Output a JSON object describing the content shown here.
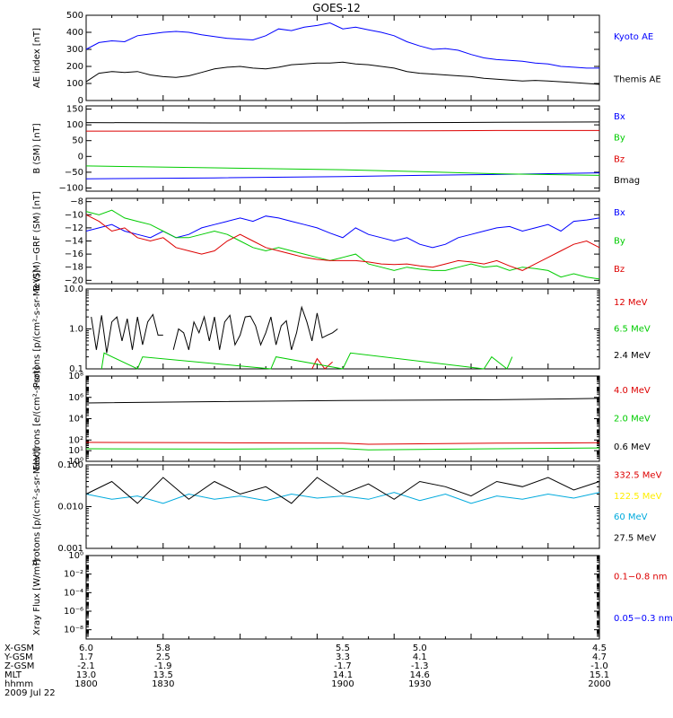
{
  "title": "GOES-12",
  "colors": {
    "black": "#000000",
    "blue": "#0000ff",
    "green": "#00cc00",
    "red": "#dd0000",
    "yellow": "#ffee00",
    "cyan": "#00aadd"
  },
  "x_axis": {
    "min": 1800,
    "max": 2000,
    "rows": [
      {
        "label": "X-GSM",
        "values": [
          "6.0",
          "5.8",
          "5.5",
          "5.0",
          "4.5"
        ]
      },
      {
        "label": "Y-GSM",
        "values": [
          "1.7",
          "2.5",
          "3.3",
          "4.1",
          "4.7"
        ]
      },
      {
        "label": "Z-GSM",
        "values": [
          "-2.1",
          "-1.9",
          "-1.7",
          "-1.3",
          "-1.0"
        ]
      },
      {
        "label": "MLT",
        "values": [
          "13.0",
          "13.5",
          "14.1",
          "14.6",
          "15.1"
        ]
      },
      {
        "label": "hhmm",
        "values": [
          "1800",
          "1830",
          "1900",
          "1930",
          "2000"
        ]
      }
    ],
    "date": "2009 Jul 22"
  },
  "chart_data": [
    {
      "type": "line",
      "id": "ae",
      "ylabel": "AE index [nT]",
      "ylim": [
        0,
        500
      ],
      "yticks": [
        "0",
        "100",
        "200",
        "300",
        "400",
        "500"
      ],
      "ytickvals": [
        0,
        100,
        200,
        300,
        400,
        500
      ],
      "series": [
        {
          "name": "Kyoto AE",
          "color": "blue",
          "x": [
            1800,
            1805,
            1810,
            1815,
            1820,
            1825,
            1830,
            1835,
            1840,
            1845,
            1850,
            1855,
            1860,
            1865,
            1870,
            1875,
            1880,
            1885,
            1890,
            1895,
            1900,
            1905,
            1910,
            1915,
            1920,
            1925,
            1930,
            1935,
            1940,
            1945,
            1950,
            1955,
            1960,
            1965,
            1970,
            1975,
            1980,
            1985,
            1990,
            1995,
            2000
          ],
          "y": [
            300,
            340,
            350,
            345,
            380,
            390,
            400,
            405,
            400,
            385,
            375,
            365,
            360,
            355,
            380,
            420,
            410,
            430,
            440,
            455,
            420,
            430,
            415,
            400,
            380,
            345,
            320,
            300,
            305,
            295,
            270,
            250,
            240,
            235,
            230,
            220,
            215,
            200,
            195,
            190,
            190
          ]
        },
        {
          "name": "Themis AE",
          "color": "black",
          "x": [
            1800,
            1805,
            1810,
            1815,
            1820,
            1825,
            1830,
            1835,
            1840,
            1845,
            1850,
            1855,
            1860,
            1865,
            1870,
            1875,
            1880,
            1885,
            1890,
            1895,
            1900,
            1905,
            1910,
            1915,
            1920,
            1925,
            1930,
            1935,
            1940,
            1945,
            1950,
            1955,
            1960,
            1965,
            1970,
            1975,
            1980,
            1985,
            1990,
            1995,
            2000
          ],
          "y": [
            110,
            160,
            170,
            165,
            170,
            150,
            140,
            135,
            145,
            165,
            185,
            195,
            200,
            190,
            185,
            195,
            210,
            215,
            220,
            220,
            225,
            215,
            210,
            200,
            190,
            170,
            160,
            155,
            150,
            145,
            140,
            130,
            125,
            120,
            115,
            118,
            115,
            110,
            105,
            100,
            95
          ]
        }
      ]
    },
    {
      "type": "line",
      "id": "bsm",
      "ylabel": "B (SM) [nT]",
      "ylim": [
        -110,
        160
      ],
      "yticks": [
        "150",
        "100",
        "50",
        "0",
        "−50",
        "−100"
      ],
      "ytickvals": [
        150,
        100,
        50,
        0,
        -50,
        -100
      ],
      "series": [
        {
          "name": "Bx",
          "color": "blue",
          "x": [
            1800,
            1850,
            1900,
            1930,
            1960,
            2000
          ],
          "y": [
            -71,
            -68,
            -64,
            -60,
            -57,
            -52
          ]
        },
        {
          "name": "By",
          "color": "green",
          "x": [
            1800,
            1850,
            1900,
            1930,
            1960,
            2000
          ],
          "y": [
            -30,
            -36,
            -42,
            -48,
            -55,
            -60
          ]
        },
        {
          "name": "Bz",
          "color": "red",
          "x": [
            1800,
            1850,
            1900,
            1930,
            1960,
            2000
          ],
          "y": [
            80,
            80,
            81,
            81,
            82,
            82
          ]
        },
        {
          "name": "Bmag",
          "color": "black",
          "x": [
            1800,
            1850,
            1900,
            1930,
            1960,
            2000
          ],
          "y": [
            107,
            106,
            106,
            107,
            108,
            109
          ]
        }
      ],
      "gap": [
        1897,
        1900
      ]
    },
    {
      "type": "line",
      "id": "bdiff",
      "ylabel": "B (SM)−GRF (SM) [nT]",
      "ylim": [
        -20.5,
        -7.5
      ],
      "yticks": [
        "−8",
        "−10",
        "−12",
        "−14",
        "−16",
        "−18",
        "−20"
      ],
      "ytickvals": [
        -8,
        -10,
        -12,
        -14,
        -16,
        -18,
        -20
      ],
      "series": [
        {
          "name": "Bx",
          "color": "blue",
          "x": [
            1800,
            1805,
            1810,
            1815,
            1820,
            1825,
            1830,
            1835,
            1840,
            1845,
            1850,
            1855,
            1860,
            1865,
            1870,
            1875,
            1880,
            1885,
            1890,
            1895,
            1900,
            1905,
            1910,
            1915,
            1920,
            1925,
            1930,
            1935,
            1940,
            1945,
            1950,
            1955,
            1960,
            1965,
            1970,
            1975,
            1980,
            1985,
            1990,
            1995,
            2000
          ],
          "y": [
            -12.5,
            -12,
            -11.5,
            -12.5,
            -13,
            -13.5,
            -12.5,
            -13.5,
            -13,
            -12,
            -11.5,
            -11,
            -10.5,
            -11,
            -10.2,
            -10.5,
            -11,
            -11.5,
            -12,
            -12.8,
            -13.5,
            -12,
            -13,
            -13.5,
            -14,
            -13.5,
            -14.5,
            -15,
            -14.5,
            -13.5,
            -13,
            -12.5,
            -12,
            -11.8,
            -12.5,
            -12,
            -11.5,
            -12.5,
            -11,
            -10.8,
            -10.5
          ]
        },
        {
          "name": "By",
          "color": "green",
          "x": [
            1800,
            1805,
            1810,
            1815,
            1820,
            1825,
            1830,
            1835,
            1840,
            1845,
            1850,
            1855,
            1860,
            1865,
            1870,
            1875,
            1880,
            1885,
            1890,
            1895,
            1900,
            1905,
            1910,
            1915,
            1920,
            1925,
            1930,
            1935,
            1940,
            1945,
            1950,
            1955,
            1960,
            1965,
            1970,
            1975,
            1980,
            1985,
            1990,
            1995,
            2000
          ],
          "y": [
            -9.5,
            -10,
            -9.3,
            -10.5,
            -11,
            -11.5,
            -12.5,
            -13.5,
            -13.5,
            -13,
            -12.5,
            -13,
            -14,
            -15,
            -15.5,
            -15,
            -15.5,
            -16,
            -16.5,
            -17,
            -16.5,
            -16,
            -17.5,
            -18,
            -18.5,
            -18,
            -18.3,
            -18.5,
            -18.5,
            -18,
            -17.5,
            -18,
            -17.8,
            -18.5,
            -18,
            -18.2,
            -18.5,
            -19.5,
            -19,
            -19.5,
            -19.8
          ]
        },
        {
          "name": "Bz",
          "color": "red",
          "x": [
            1800,
            1805,
            1810,
            1815,
            1820,
            1825,
            1830,
            1835,
            1840,
            1845,
            1850,
            1855,
            1860,
            1865,
            1870,
            1875,
            1880,
            1885,
            1890,
            1895,
            1900,
            1905,
            1910,
            1915,
            1920,
            1925,
            1930,
            1935,
            1940,
            1945,
            1950,
            1955,
            1960,
            1965,
            1970,
            1975,
            1980,
            1985,
            1990,
            1995,
            2000
          ],
          "y": [
            -10,
            -11,
            -12.5,
            -12,
            -13.5,
            -14,
            -13.5,
            -15,
            -15.5,
            -16,
            -15.5,
            -14,
            -13,
            -14,
            -15,
            -15.5,
            -16,
            -16.5,
            -16.8,
            -17,
            -17,
            -17,
            -17.2,
            -17.5,
            -17.6,
            -17.5,
            -17.8,
            -18,
            -17.5,
            -17,
            -17.2,
            -17.5,
            -17,
            -17.8,
            -18.5,
            -17.5,
            -16.5,
            -15.5,
            -14.5,
            -14,
            -15
          ]
        }
      ],
      "gap": [
        1897,
        1900
      ]
    },
    {
      "type": "line",
      "id": "protons1",
      "log": true,
      "ylabel": "Protons [p/(cm²-s-sr-MeV)]",
      "ylim": [
        0.1,
        10
      ],
      "yticks": [
        "10.0",
        "1.0",
        "0.1"
      ],
      "ytickvals": [
        10,
        1,
        0.1
      ],
      "series": [
        {
          "name": "12 MeV",
          "color": "red",
          "x": [
            1888,
            1890,
            1893,
            1896
          ],
          "y": [
            0.1,
            0.18,
            0.1,
            0.15
          ]
        },
        {
          "name": "6.5 MeV",
          "color": "green",
          "x": [
            1806,
            1807,
            1820,
            1822,
            1872,
            1874,
            1900,
            1903,
            1955,
            1958,
            1964,
            1966
          ],
          "y": [
            0.1,
            0.25,
            0.1,
            0.2,
            0.1,
            0.2,
            0.1,
            0.25,
            0.1,
            0.2,
            0.1,
            0.2
          ]
        },
        {
          "name": "2.4 MeV",
          "color": "black",
          "x": [
            1802,
            1804,
            1806,
            1808,
            1810,
            1812,
            1814,
            1816,
            1818,
            1820,
            1822,
            1824,
            1826,
            1828,
            1830,
            1832,
            1834,
            1836,
            1838,
            1840,
            1842,
            1844,
            1846,
            1848,
            1850,
            1852,
            1854,
            1856,
            1858,
            1860,
            1862,
            1864,
            1866,
            1868,
            1870,
            1872,
            1874,
            1876,
            1878,
            1880,
            1882,
            1884,
            1886,
            1888,
            1890,
            1892,
            1894,
            1896,
            1898
          ],
          "y": [
            2,
            0.3,
            2.2,
            0.25,
            1.5,
            2,
            0.5,
            1.8,
            0.3,
            2,
            0.4,
            1.5,
            2.3,
            0.7,
            0.7,
            null,
            0.3,
            1,
            0.8,
            0.3,
            1.5,
            0.8,
            2,
            0.5,
            2,
            0.3,
            1.5,
            2.2,
            0.4,
            0.7,
            2,
            2.1,
            1.2,
            0.4,
            0.8,
            2,
            0.4,
            1.2,
            1.6,
            0.3,
            0.8,
            3.5,
            1.5,
            0.5,
            2.5,
            0.6,
            0.7,
            0.8,
            1
          ]
        }
      ]
    },
    {
      "type": "line",
      "id": "electrons",
      "log": true,
      "ylabel": "Electrons [e/(cm²-s-sr)]",
      "ylim": [
        1,
        100000000.0
      ],
      "yticks": [
        "10⁸",
        "10⁶",
        "10⁴",
        "10²",
        "10¹",
        "10⁰"
      ],
      "ytickvals": [
        100000000.0,
        1000000.0,
        10000.0,
        100,
        10,
        1
      ],
      "series": [
        {
          "name": "4.0 MeV",
          "color": "red",
          "x": [
            1800,
            1850,
            1900,
            1910,
            1960,
            2000
          ],
          "y": [
            60,
            55,
            50,
            40,
            50,
            55
          ]
        },
        {
          "name": "2.0 MeV",
          "color": "green",
          "x": [
            1800,
            1850,
            1900,
            1910,
            1960,
            2000
          ],
          "y": [
            15,
            14,
            16,
            12,
            15,
            18
          ]
        },
        {
          "name": "0.6 MeV",
          "color": "black",
          "x": [
            1800,
            1850,
            1900,
            1960,
            2000
          ],
          "y": [
            300000.0,
            400000.0,
            500000.0,
            600000.0,
            800000.0
          ]
        }
      ]
    },
    {
      "type": "line",
      "id": "protons2",
      "log": true,
      "ylabel": "Protons [p/(cm²-s-sr-MeV)]",
      "ylim": [
        0.001,
        0.1
      ],
      "yticks": [
        "0.100",
        "0.010",
        "0.001"
      ],
      "ytickvals": [
        0.1,
        0.01,
        0.001
      ],
      "series": [
        {
          "name": "332.5 MeV",
          "color": "red",
          "x": [],
          "y": []
        },
        {
          "name": "122.5 MeV",
          "color": "yellow",
          "x": [],
          "y": []
        },
        {
          "name": "60 MeV",
          "color": "cyan",
          "x": [
            1800,
            1810,
            1820,
            1830,
            1840,
            1850,
            1860,
            1870,
            1880,
            1890,
            1900,
            1910,
            1920,
            1930,
            1940,
            1950,
            1960,
            1970,
            1980,
            1990,
            2000
          ],
          "y": [
            0.02,
            0.015,
            0.018,
            0.012,
            0.02,
            0.015,
            0.018,
            0.014,
            0.02,
            0.016,
            0.018,
            0.015,
            0.022,
            0.014,
            0.02,
            0.012,
            0.018,
            0.015,
            0.02,
            0.016,
            0.022
          ]
        },
        {
          "name": "27.5 MeV",
          "color": "black",
          "x": [
            1800,
            1810,
            1820,
            1830,
            1840,
            1850,
            1860,
            1870,
            1880,
            1890,
            1900,
            1910,
            1920,
            1930,
            1940,
            1950,
            1960,
            1970,
            1980,
            1990,
            2000
          ],
          "y": [
            0.02,
            0.04,
            0.012,
            0.05,
            0.015,
            0.04,
            0.02,
            0.03,
            0.012,
            0.05,
            0.02,
            0.035,
            0.015,
            0.04,
            0.03,
            0.018,
            0.04,
            0.03,
            0.05,
            0.025,
            0.04
          ]
        }
      ]
    },
    {
      "type": "line",
      "id": "xray",
      "log": true,
      "ylabel": "Xray Flux [W/m²]",
      "ylim": [
        1e-09,
        1
      ],
      "yticks": [
        "10⁰",
        "10⁻²",
        "10⁻⁴",
        "10⁻⁶",
        "10⁻⁸"
      ],
      "ytickvals": [
        1,
        0.01,
        0.0001,
        1e-06,
        1e-08
      ],
      "series": [
        {
          "name": "0.1−0.8 nm",
          "color": "red",
          "x": [],
          "y": []
        },
        {
          "name": "0.05−0.3 nm",
          "color": "blue",
          "x": [],
          "y": []
        }
      ]
    }
  ]
}
